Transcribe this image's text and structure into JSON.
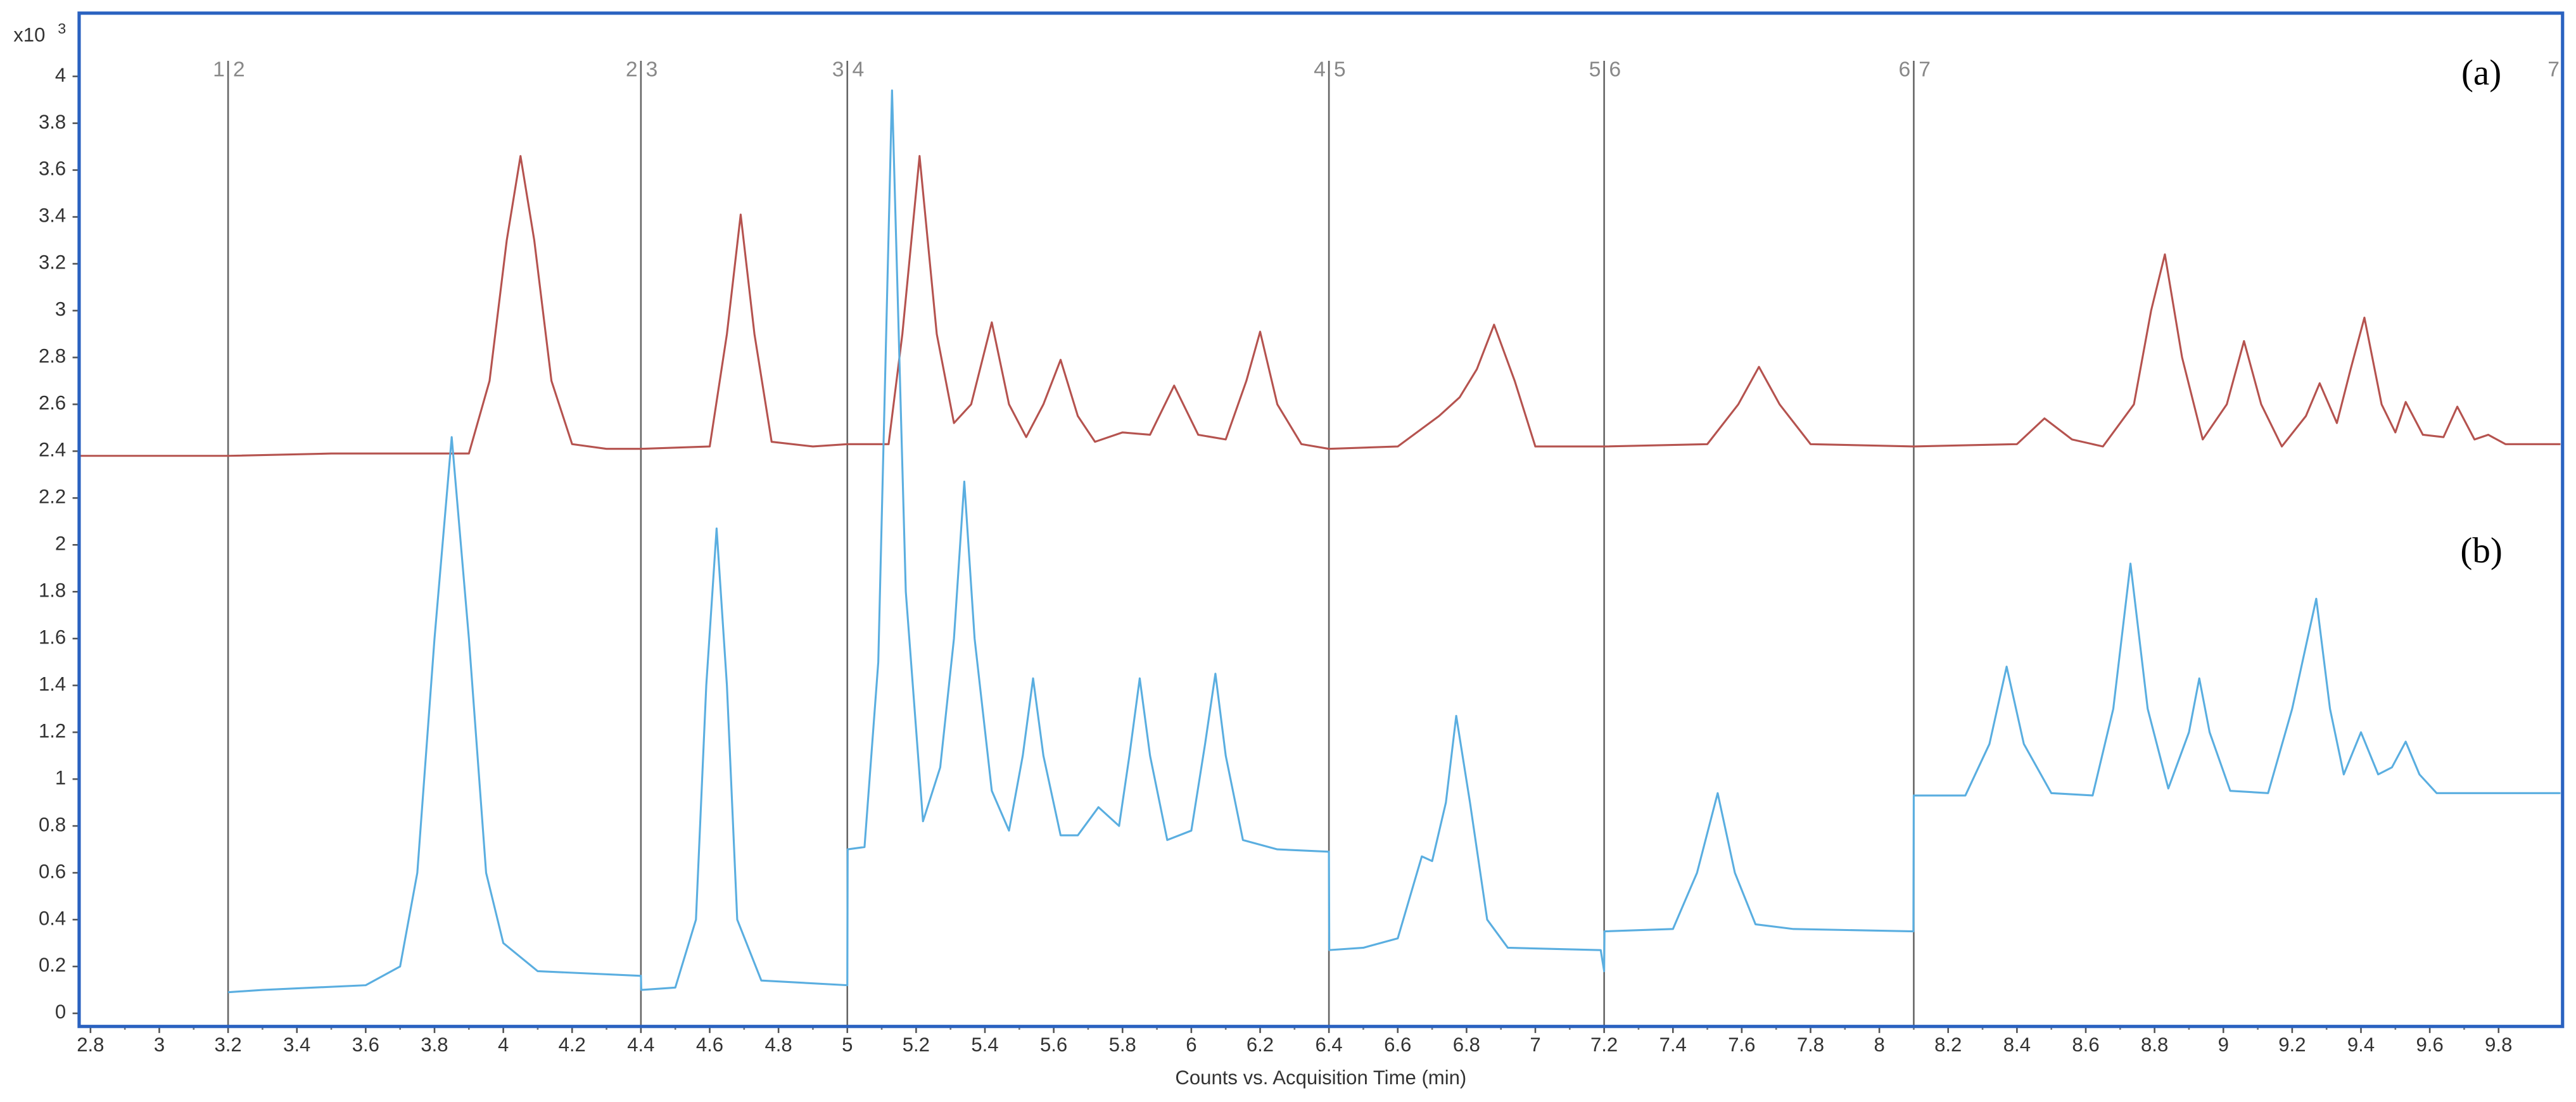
{
  "chart_data": {
    "type": "line",
    "x_label": "Counts vs. Acquisition Time (min)",
    "y_multiplier": {
      "base": "x10",
      "exponent": "3"
    },
    "xlim": [
      2.767,
      9.986
    ],
    "ylim": [
      -0.056,
      4.27
    ],
    "xticks": [
      2.8,
      3,
      3.2,
      3.4,
      3.6,
      3.8,
      4,
      4.2,
      4.4,
      4.6,
      4.8,
      5,
      5.2,
      5.4,
      5.6,
      5.8,
      6,
      6.2,
      6.4,
      6.6,
      6.8,
      7,
      7.2,
      7.4,
      7.6,
      7.8,
      8,
      8.2,
      8.4,
      8.6,
      8.8,
      9,
      9.2,
      9.4,
      9.6,
      9.8
    ],
    "yticks": [
      0,
      0.2,
      0.4,
      0.6,
      0.8,
      1,
      1.2,
      1.4,
      1.6,
      1.8,
      2,
      2.2,
      2.4,
      2.6,
      2.8,
      3,
      3.2,
      3.4,
      3.6,
      3.8,
      4
    ],
    "segments": [
      {
        "x": 3.2,
        "labels": [
          "1",
          "2"
        ]
      },
      {
        "x": 4.4,
        "labels": [
          "2",
          "3"
        ]
      },
      {
        "x": 5.0,
        "labels": [
          "3",
          "4"
        ]
      },
      {
        "x": 6.4,
        "labels": [
          "4",
          "5"
        ]
      },
      {
        "x": 7.2,
        "labels": [
          "5",
          "6"
        ]
      },
      {
        "x": 8.1,
        "labels": [
          "6",
          "7"
        ]
      }
    ],
    "end_label": {
      "x": 9.96,
      "label": "7"
    },
    "annotations": [
      {
        "text": "(a)",
        "x": 9.75,
        "y": 4.0
      },
      {
        "text": "(b)",
        "x": 9.75,
        "y": 1.96
      }
    ],
    "series": [
      {
        "name": "(a)",
        "color": "#b5534f",
        "x": [
          2.77,
          3.2,
          3.5,
          3.9,
          3.96,
          4.01,
          4.05,
          4.09,
          4.14,
          4.2,
          4.3,
          4.4,
          4.6,
          4.65,
          4.69,
          4.73,
          4.78,
          4.9,
          5.0,
          5.12,
          5.16,
          5.21,
          5.26,
          5.31,
          5.36,
          5.42,
          5.47,
          5.52,
          5.57,
          5.62,
          5.67,
          5.72,
          5.8,
          5.88,
          5.95,
          6.02,
          6.1,
          6.16,
          6.2,
          6.25,
          6.32,
          6.4,
          6.6,
          6.72,
          6.78,
          6.83,
          6.88,
          6.94,
          7.0,
          7.2,
          7.5,
          7.59,
          7.65,
          7.71,
          7.8,
          8.1,
          8.4,
          8.48,
          8.56,
          8.65,
          8.74,
          8.79,
          8.83,
          8.88,
          8.94,
          9.01,
          9.06,
          9.11,
          9.17,
          9.24,
          9.28,
          9.33,
          9.37,
          9.41,
          9.46,
          9.5,
          9.53,
          9.58,
          9.64,
          9.68,
          9.73,
          9.77,
          9.82,
          9.98
        ],
        "values": [
          2.38,
          2.38,
          2.39,
          2.39,
          2.7,
          3.3,
          3.66,
          3.3,
          2.7,
          2.43,
          2.41,
          2.41,
          2.42,
          2.9,
          3.41,
          2.9,
          2.44,
          2.42,
          2.43,
          2.43,
          2.9,
          3.66,
          2.9,
          2.52,
          2.6,
          2.95,
          2.6,
          2.46,
          2.6,
          2.79,
          2.55,
          2.44,
          2.48,
          2.47,
          2.68,
          2.47,
          2.45,
          2.7,
          2.91,
          2.6,
          2.43,
          2.41,
          2.42,
          2.55,
          2.63,
          2.75,
          2.94,
          2.7,
          2.42,
          2.42,
          2.43,
          2.6,
          2.76,
          2.6,
          2.43,
          2.42,
          2.43,
          2.54,
          2.45,
          2.42,
          2.6,
          3.0,
          3.24,
          2.8,
          2.45,
          2.6,
          2.87,
          2.6,
          2.42,
          2.55,
          2.69,
          2.52,
          2.75,
          2.97,
          2.6,
          2.48,
          2.61,
          2.47,
          2.46,
          2.59,
          2.45,
          2.47,
          2.43,
          2.43
        ]
      },
      {
        "name": "(b)",
        "color": "#5aaee0",
        "x": [
          3.2,
          3.3,
          3.6,
          3.7,
          3.75,
          3.8,
          3.85,
          3.9,
          3.95,
          4.0,
          4.1,
          4.4,
          4.401,
          4.5,
          4.56,
          4.59,
          4.62,
          4.65,
          4.68,
          4.75,
          5.0,
          5.001,
          5.05,
          5.09,
          5.13,
          5.17,
          5.22,
          5.27,
          5.31,
          5.34,
          5.37,
          5.42,
          5.47,
          5.51,
          5.54,
          5.57,
          5.62,
          5.67,
          5.73,
          5.79,
          5.82,
          5.85,
          5.88,
          5.93,
          6.0,
          6.04,
          6.07,
          6.1,
          6.15,
          6.25,
          6.4,
          6.401,
          6.5,
          6.6,
          6.67,
          6.7,
          6.74,
          6.77,
          6.81,
          6.86,
          6.92,
          7.19,
          7.2,
          7.201,
          7.4,
          7.47,
          7.53,
          7.58,
          7.64,
          7.75,
          8.099,
          8.1,
          8.25,
          8.32,
          8.37,
          8.42,
          8.5,
          8.62,
          8.68,
          8.73,
          8.78,
          8.84,
          8.9,
          8.93,
          8.96,
          9.02,
          9.13,
          9.2,
          9.27,
          9.31,
          9.35,
          9.4,
          9.45,
          9.49,
          9.53,
          9.57,
          9.62,
          9.98
        ],
        "values": [
          0.09,
          0.1,
          0.12,
          0.2,
          0.6,
          1.6,
          2.46,
          1.6,
          0.6,
          0.3,
          0.18,
          0.16,
          0.1,
          0.11,
          0.4,
          1.4,
          2.07,
          1.4,
          0.4,
          0.14,
          0.12,
          0.7,
          0.71,
          1.5,
          3.94,
          1.8,
          0.82,
          1.05,
          1.6,
          2.27,
          1.6,
          0.95,
          0.78,
          1.1,
          1.43,
          1.1,
          0.76,
          0.76,
          0.88,
          0.8,
          1.1,
          1.43,
          1.1,
          0.74,
          0.78,
          1.15,
          1.45,
          1.1,
          0.74,
          0.7,
          0.69,
          0.27,
          0.28,
          0.32,
          0.67,
          0.65,
          0.9,
          1.27,
          0.9,
          0.4,
          0.28,
          0.27,
          0.18,
          0.35,
          0.36,
          0.6,
          0.94,
          0.6,
          0.38,
          0.36,
          0.35,
          0.93,
          0.93,
          1.15,
          1.48,
          1.15,
          0.94,
          0.93,
          1.3,
          1.92,
          1.3,
          0.96,
          1.2,
          1.43,
          1.2,
          0.95,
          0.94,
          1.3,
          1.77,
          1.3,
          1.02,
          1.2,
          1.02,
          1.05,
          1.16,
          1.02,
          0.94,
          0.94
        ]
      }
    ]
  }
}
